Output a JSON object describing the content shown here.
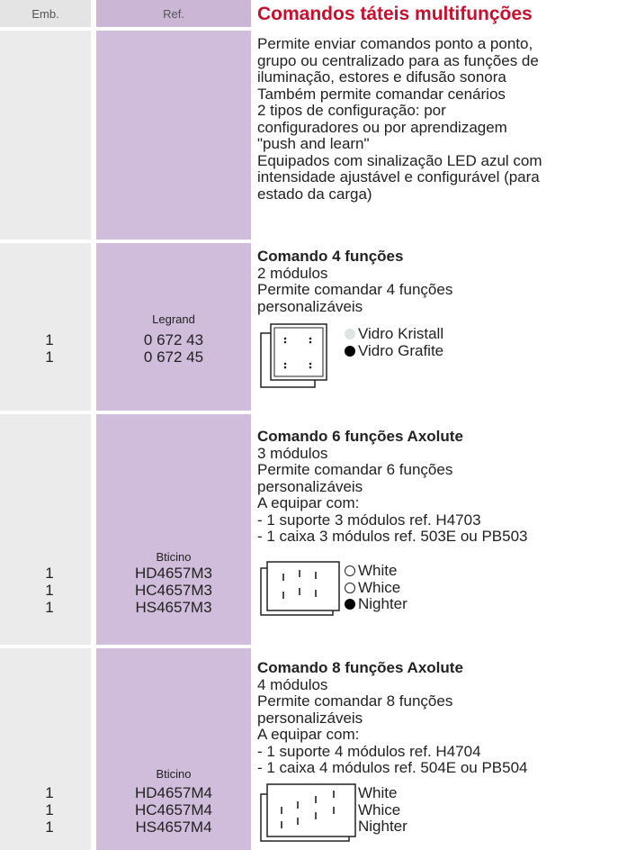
{
  "header": {
    "emb": "Emb.",
    "ref": "Ref.",
    "title": "Comandos táteis multifunções"
  },
  "intro": [
    "Permite enviar comandos ponto a ponto,",
    "grupo ou centralizado para as funções de",
    "iluminação, estores e difusão sonora",
    "Também permite comandar cenários",
    "2 tipos de configuração: por",
    "configuradores ou por aprendizagem",
    "\"push and learn\"",
    "Equipados com sinalização LED azul com",
    "intensidade ajustável e configurável (para",
    "estado da carga)"
  ],
  "sections": [
    {
      "title": "Comando 4 funções",
      "lines": [
        "2 módulos",
        "Permite comandar 4 funções",
        "personalizáveis"
      ],
      "brand": "Legrand",
      "refs": [
        "0 672 43",
        "0 672 45"
      ],
      "emb": [
        "1",
        "1"
      ],
      "options": [
        {
          "label": "Vidro Kristall",
          "swatch": "#dde5e1"
        },
        {
          "label": "Vidro Grafite",
          "swatch": "#000000"
        }
      ]
    },
    {
      "title": "Comando 6 funções Axolute",
      "lines": [
        "3 módulos",
        "Permite comandar 6 funções",
        "personalizáveis",
        "A equipar com:",
        "- 1 suporte 3 módulos ref. H4703",
        "- 1 caixa 3 módulos ref. 503E ou PB503"
      ],
      "brand": "Bticino",
      "refs": [
        "HD4657M3",
        "HC4657M3",
        "HS4657M3"
      ],
      "emb": [
        "1",
        "1",
        "1"
      ],
      "options": [
        {
          "label": "White",
          "swatch": "#ffffff"
        },
        {
          "label": "Whice",
          "swatch": "#ffffff"
        },
        {
          "label": "Nighter",
          "swatch": "#000000"
        }
      ]
    },
    {
      "title": "Comando 8 funções Axolute",
      "lines": [
        "4 módulos",
        "Permite comandar 8 funções",
        "personalizáveis",
        "A equipar com:",
        "- 1 suporte 4 módulos ref. H4704",
        "- 1 caixa 4 módulos ref. 504E ou PB504"
      ],
      "brand": "Bticino",
      "refs": [
        "HD4657M4",
        "HC4657M4",
        "HS4657M4"
      ],
      "emb": [
        "1",
        "1",
        "1"
      ],
      "options": [
        {
          "label": "White",
          "swatch": "#ffffff"
        },
        {
          "label": "Whice",
          "swatch": "#ffffff"
        },
        {
          "label": "Nighter",
          "swatch": "#000000"
        }
      ]
    }
  ]
}
